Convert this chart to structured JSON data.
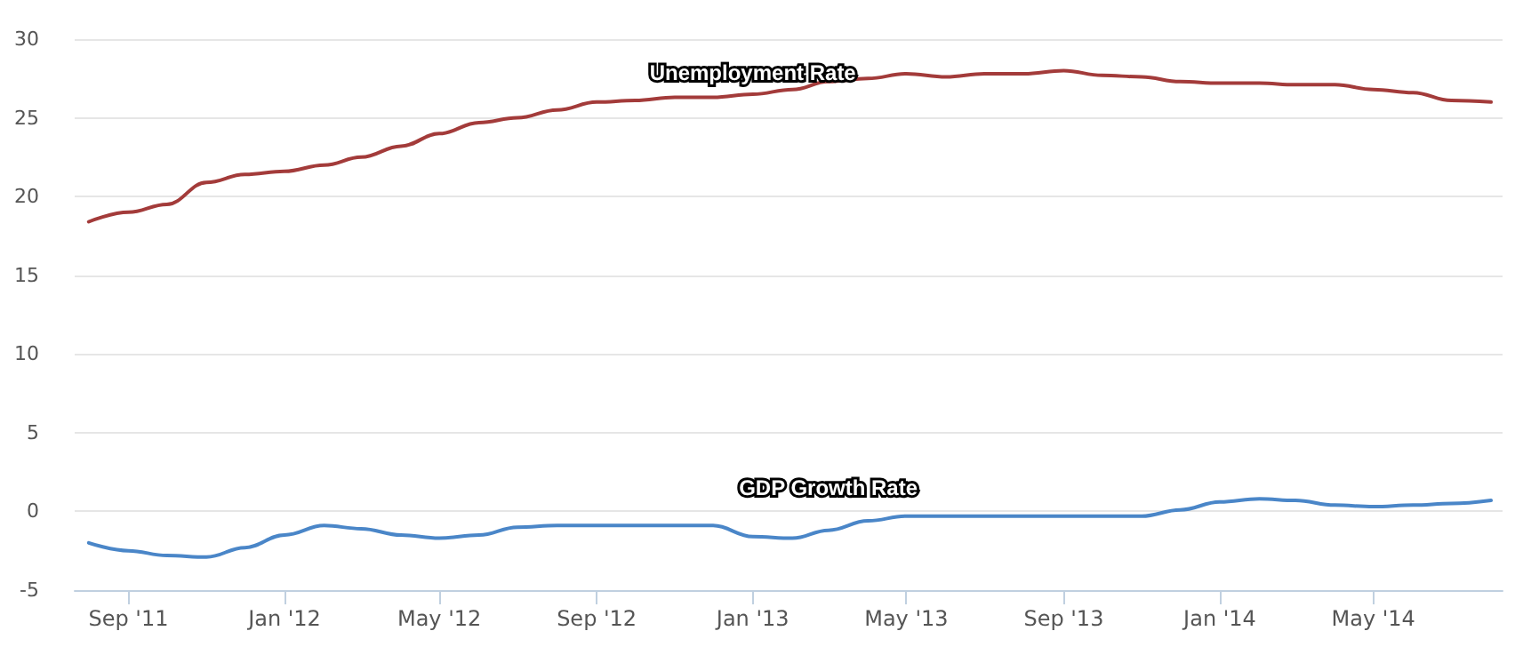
{
  "chart_data": {
    "type": "line",
    "x": [
      "2011-08",
      "2011-09",
      "2011-10",
      "2011-11",
      "2011-12",
      "2012-01",
      "2012-02",
      "2012-03",
      "2012-04",
      "2012-05",
      "2012-06",
      "2012-07",
      "2012-08",
      "2012-09",
      "2012-10",
      "2012-11",
      "2012-12",
      "2013-01",
      "2013-02",
      "2013-03",
      "2013-04",
      "2013-05",
      "2013-06",
      "2013-07",
      "2013-08",
      "2013-09",
      "2013-10",
      "2013-11",
      "2013-12",
      "2014-01",
      "2014-02",
      "2014-03",
      "2014-04",
      "2014-05",
      "2014-06",
      "2014-07",
      "2014-08"
    ],
    "series": [
      {
        "name": "Unemployment Rate",
        "color": "#a33b3a",
        "values": [
          18.4,
          19.0,
          19.5,
          20.9,
          21.4,
          21.6,
          22.0,
          22.5,
          23.2,
          24.0,
          24.7,
          25.0,
          25.5,
          26.0,
          26.1,
          26.3,
          26.3,
          26.5,
          26.8,
          27.3,
          27.5,
          27.8,
          27.6,
          27.8,
          27.8,
          28.0,
          27.7,
          27.6,
          27.3,
          27.2,
          27.2,
          27.1,
          27.1,
          26.8,
          26.6,
          26.1,
          26.0
        ]
      },
      {
        "name": "GDP Growth Rate",
        "color": "#4a86c8",
        "values": [
          -2.0,
          -2.5,
          -2.8,
          -2.9,
          -2.3,
          -1.5,
          -0.9,
          -1.1,
          -1.5,
          -1.7,
          -1.5,
          -1.0,
          -0.9,
          -0.9,
          -0.9,
          -0.9,
          -0.9,
          -1.6,
          -1.7,
          -1.2,
          -0.6,
          -0.3,
          -0.3,
          -0.3,
          -0.3,
          -0.3,
          -0.3,
          -0.3,
          0.1,
          0.6,
          0.8,
          0.7,
          0.4,
          0.3,
          0.4,
          0.5,
          0.7
        ]
      }
    ],
    "xlim": [
      "2011-07-21",
      "2014-08-10"
    ],
    "xticks": [
      {
        "value": "2011-09",
        "label": "Sep '11"
      },
      {
        "value": "2012-01",
        "label": "Jan '12"
      },
      {
        "value": "2012-05",
        "label": "May '12"
      },
      {
        "value": "2012-09",
        "label": "Sep '12"
      },
      {
        "value": "2013-01",
        "label": "Jan '13"
      },
      {
        "value": "2013-05",
        "label": "May '13"
      },
      {
        "value": "2013-09",
        "label": "Sep '13"
      },
      {
        "value": "2014-01",
        "label": "Jan '14"
      },
      {
        "value": "2014-05",
        "label": "May '14"
      }
    ],
    "ylim": [
      -5,
      30
    ],
    "yticks": [
      -5,
      0,
      5,
      10,
      15,
      20,
      25,
      30
    ],
    "grid": "y",
    "legend": false,
    "marker": "none",
    "line_style": "solid"
  }
}
